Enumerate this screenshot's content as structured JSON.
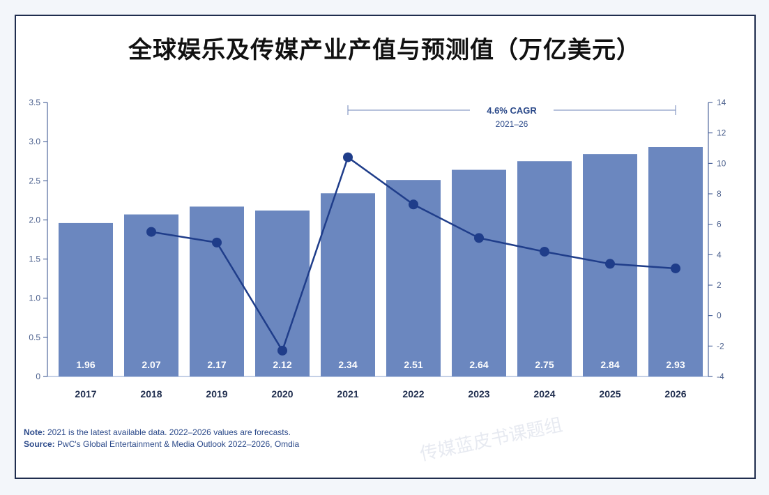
{
  "chart_data": {
    "type": "bar",
    "title": "全球娱乐及传媒产业产值与预测值（万亿美元）",
    "categories": [
      "2017",
      "2018",
      "2019",
      "2020",
      "2021",
      "2022",
      "2023",
      "2024",
      "2025",
      "2026"
    ],
    "series": [
      {
        "values": [
          1.96,
          2.07,
          2.17,
          2.12,
          2.34,
          2.51,
          2.64,
          2.75,
          2.84,
          2.93
        ]
      },
      {
        "values": [
          null,
          5.5,
          4.8,
          -2.3,
          10.4,
          7.3,
          5.1,
          4.2,
          3.4,
          3.1
        ]
      }
    ],
    "ylim_left": [
      0,
      3.5
    ],
    "left_ticks": [
      "0",
      "0.5",
      "1.0",
      "1.5",
      "2.0",
      "2.5",
      "3.0",
      "3.5"
    ],
    "ylim_right": [
      -4,
      14
    ],
    "right_ticks": [
      "-4",
      "-2",
      "0",
      "2",
      "4",
      "6",
      "8",
      "10",
      "12",
      "14"
    ],
    "cagr_label": "4.6% CAGR",
    "cagr_range": "2021–26",
    "colors": {
      "bar": "#6b87bf",
      "line": "#1f3d8a",
      "axis": "#2c4a8a"
    }
  },
  "notes": {
    "note_label": "Note:",
    "note_text": " 2021 is the latest available data. 2022–2026 values are forecasts.",
    "source_label": "Source:",
    "source_text": " PwC's Global Entertainment & Media Outlook 2022–2026, Omdia"
  },
  "watermark": "传媒蓝皮书课题组"
}
